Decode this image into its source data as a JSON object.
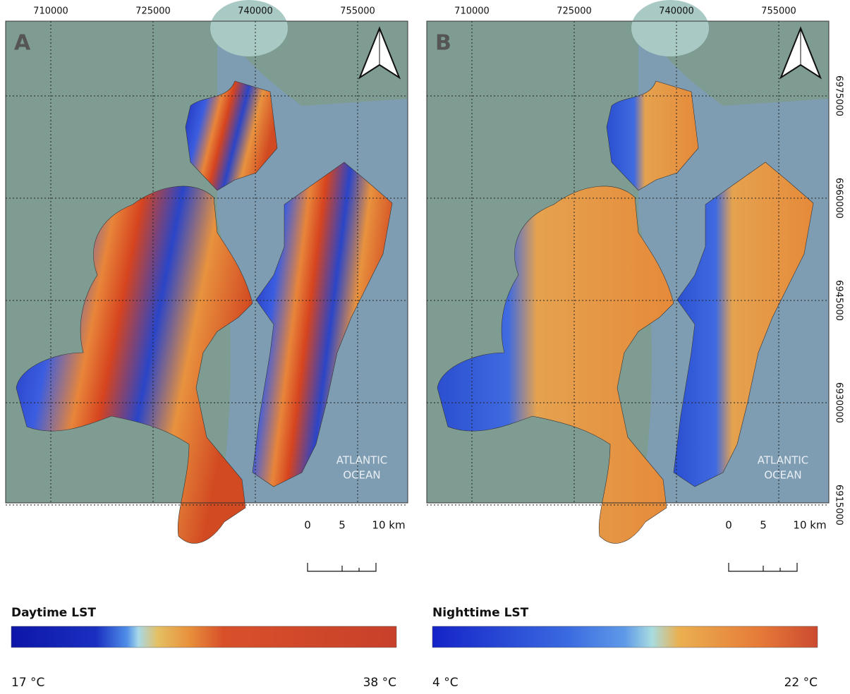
{
  "panels": [
    {
      "letter": "A",
      "x_labels": [
        710000,
        725000,
        740000,
        755000
      ],
      "ocean_label": [
        "ATLANTIC",
        "OCEAN"
      ],
      "scale_labels": [
        0,
        5,
        "10 km"
      ],
      "legend": {
        "title": "Daytime LST",
        "min_label": "17 °C",
        "max_label": "38 °C"
      }
    },
    {
      "letter": "B",
      "x_labels": [
        710000,
        725000,
        740000,
        755000
      ],
      "y_labels": [
        6975000,
        6960000,
        6945000,
        6930000,
        6915000
      ],
      "ocean_label": [
        "ATLANTIC",
        "OCEAN"
      ],
      "scale_labels": [
        0,
        5,
        "10 km"
      ],
      "legend": {
        "title": "Nighttime LST",
        "min_label": "4 °C",
        "max_label": "22 °C"
      }
    }
  ]
}
